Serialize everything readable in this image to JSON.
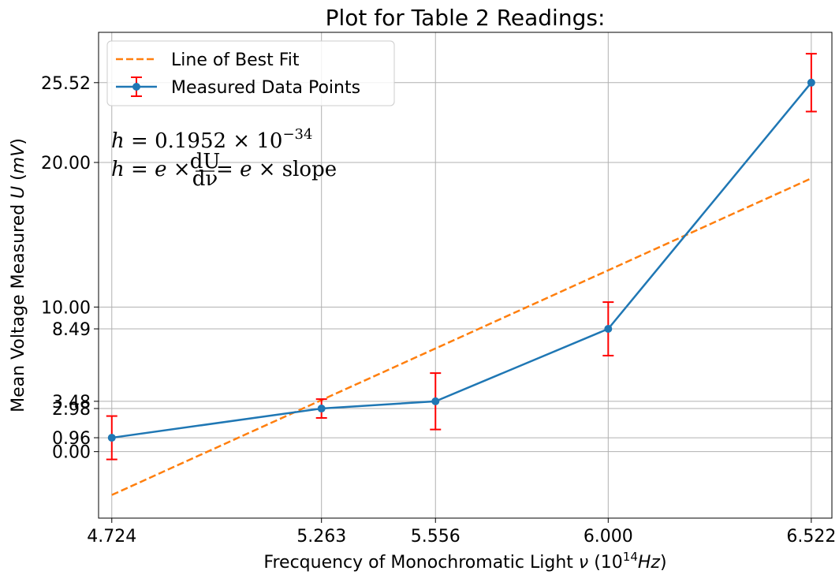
{
  "chart_data": {
    "type": "line",
    "title": "Plot for Table 2 Readings:",
    "xlabel_prefix": "Frecquency of Monochromatic Light ",
    "xlabel_symbol": "ν",
    "xlabel_units_open": " (10",
    "xlabel_units_exp": "14",
    "xlabel_units_unit": "Hz",
    "xlabel_units_close": ")",
    "ylabel_prefix": "Mean Voltage Measured ",
    "ylabel_symbol": "U",
    "ylabel_units_open": " (",
    "ylabel_units_unit": "mV",
    "ylabel_units_close": ")",
    "xlim": [
      4.69,
      6.575
    ],
    "ylim": [
      -4.6,
      29.0
    ],
    "xticks": [
      "4.724",
      "5.263",
      "5.556",
      "6.000",
      "6.522"
    ],
    "xtick_values": [
      4.724,
      5.263,
      5.556,
      6.0,
      6.522
    ],
    "yticks": [
      "0.00",
      "0.96",
      "2.98",
      "3.48",
      "8.49",
      "10.00",
      "20.00",
      "25.52"
    ],
    "ytick_values": [
      0.0,
      0.96,
      2.98,
      3.48,
      8.49,
      10.0,
      20.0,
      25.52
    ],
    "grid": true,
    "legend_position": "top-left",
    "series": [
      {
        "name": "Line of Best Fit",
        "style": "dashed",
        "color": "#ff7f0e",
        "x": [
          4.724,
          6.522
        ],
        "y": [
          -3.0,
          18.9
        ]
      },
      {
        "name": "Measured Data Points",
        "style": "solid-with-markers",
        "color": "#1f77b4",
        "errorbar_color": "#ff0000",
        "x": [
          4.724,
          5.263,
          5.556,
          6.0,
          6.522
        ],
        "y": [
          0.96,
          2.98,
          3.48,
          8.49,
          25.52
        ],
        "yerr": [
          1.5,
          0.65,
          1.95,
          1.85,
          2.0
        ]
      }
    ],
    "annotations": {
      "line1_lhs": "h",
      "line1_rhs": " = 0.1952 × 10",
      "line1_exp": "−34",
      "line2_lhs": "h",
      "line2_eq1": " = ",
      "line2_e1": "e",
      "line2_times1": " × ",
      "line2_frac_num": "dU",
      "line2_frac_den": "dν",
      "line2_eq2": " = ",
      "line2_e2": "e",
      "line2_times2": " × slope"
    }
  }
}
